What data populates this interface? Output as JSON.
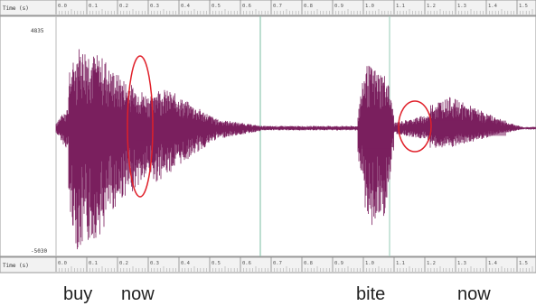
{
  "time_ruler": {
    "caption": "Time (s)",
    "ticks": [
      "0.0",
      "0.1",
      "0.2",
      "0.3",
      "0.4",
      "0.5",
      "0.6",
      "0.7",
      "0.8",
      "0.9",
      "1.0",
      "1.1",
      "1.2",
      "1.3",
      "1.4",
      "1.5"
    ]
  },
  "amplitude": {
    "max_label": "4835",
    "min_label": "-5030"
  },
  "words": [
    "buy",
    "now",
    "bite",
    "now"
  ],
  "colors": {
    "waveform": "#7a1f5e",
    "annotation": "#e0202a",
    "cursor": "#8fc8b0",
    "frame": "#999999",
    "ruler_bg": "#f2f2f2"
  }
}
